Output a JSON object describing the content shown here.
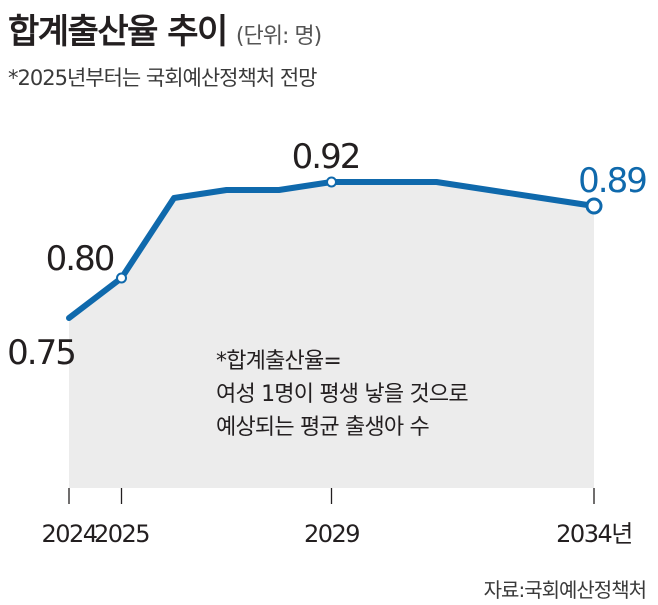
{
  "header": {
    "title": "합계출산율 추이",
    "unit": "(단위: 명)",
    "subtitle": "*2025년부터는 국회예산정책처 전망"
  },
  "note": {
    "lines": [
      "*합계출산율=",
      "여성 1명이 평생 낳을 것으로",
      "예상되는 평균 출생아 수"
    ]
  },
  "source": "자료:국회예산정책처",
  "colors": {
    "line": "#0f69ac",
    "area": "#ececec",
    "highlight_label": "#0f69ac",
    "axis": "#231f20"
  },
  "chart_data": {
    "type": "area",
    "x": [
      2024,
      2025,
      2026,
      2027,
      2028,
      2029,
      2030,
      2031,
      2032,
      2033,
      2034
    ],
    "values": [
      0.75,
      0.8,
      0.9,
      0.91,
      0.91,
      0.92,
      0.92,
      0.92,
      0.91,
      0.9,
      0.89
    ],
    "x_ticks": [
      {
        "value": 2024,
        "label": "2024"
      },
      {
        "value": 2025,
        "label": "2025"
      },
      {
        "value": 2029,
        "label": "2029"
      },
      {
        "value": 2034,
        "label": "2034년"
      }
    ],
    "data_labels": [
      {
        "x": 2024,
        "label": "0.75",
        "highlight": false
      },
      {
        "x": 2025,
        "label": "0.80",
        "highlight": false
      },
      {
        "x": 2029,
        "label": "0.92",
        "highlight": false
      },
      {
        "x": 2034,
        "label": "0.89",
        "highlight": true
      }
    ],
    "markers_at": [
      2025,
      2029,
      2034
    ]
  }
}
